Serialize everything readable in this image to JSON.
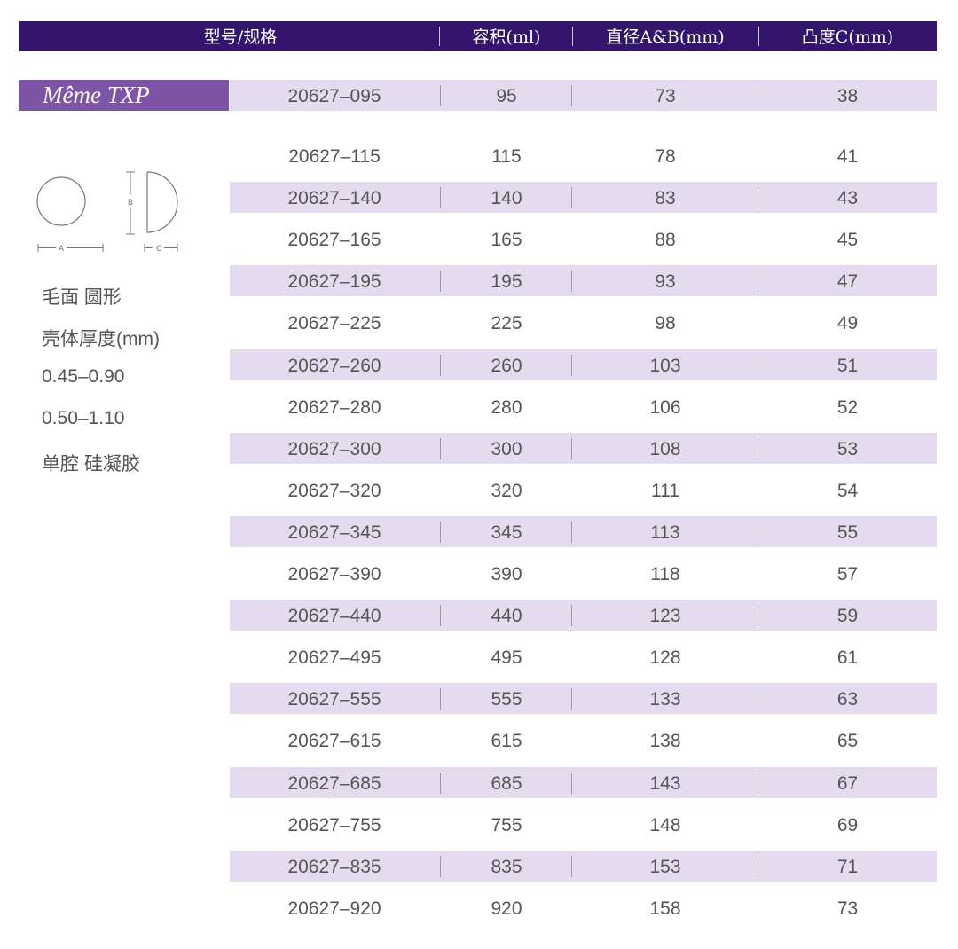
{
  "header": {
    "model_spec": "型号/规格",
    "volume": "容积(ml)",
    "diameter": "直径A&B(mm)",
    "projection": "凸度C(mm)"
  },
  "product": {
    "name": "Même TXP"
  },
  "diagram": {
    "label_a": "A",
    "label_b": "B",
    "label_c": "C"
  },
  "info": {
    "line1": "毛面 圆形",
    "line2": "壳体厚度(mm)",
    "line3": "0.45–0.90",
    "line4": "0.50–1.10",
    "line5": "单腔 硅凝胶"
  },
  "rows": [
    {
      "model": "20627–095",
      "volume": "95",
      "diameter": "73",
      "projection": "38"
    },
    {
      "model": "20627–115",
      "volume": "115",
      "diameter": "78",
      "projection": "41"
    },
    {
      "model": "20627–140",
      "volume": "140",
      "diameter": "83",
      "projection": "43"
    },
    {
      "model": "20627–165",
      "volume": "165",
      "diameter": "88",
      "projection": "45"
    },
    {
      "model": "20627–195",
      "volume": "195",
      "diameter": "93",
      "projection": "47"
    },
    {
      "model": "20627–225",
      "volume": "225",
      "diameter": "98",
      "projection": "49"
    },
    {
      "model": "20627–260",
      "volume": "260",
      "diameter": "103",
      "projection": "51"
    },
    {
      "model": "20627–280",
      "volume": "280",
      "diameter": "106",
      "projection": "52"
    },
    {
      "model": "20627–300",
      "volume": "300",
      "diameter": "108",
      "projection": "53"
    },
    {
      "model": "20627–320",
      "volume": "320",
      "diameter": "111",
      "projection": "54"
    },
    {
      "model": "20627–345",
      "volume": "345",
      "diameter": "113",
      "projection": "55"
    },
    {
      "model": "20627–390",
      "volume": "390",
      "diameter": "118",
      "projection": "57"
    },
    {
      "model": "20627–440",
      "volume": "440",
      "diameter": "123",
      "projection": "59"
    },
    {
      "model": "20627–495",
      "volume": "495",
      "diameter": "128",
      "projection": "61"
    },
    {
      "model": "20627–555",
      "volume": "555",
      "diameter": "133",
      "projection": "63"
    },
    {
      "model": "20627–615",
      "volume": "615",
      "diameter": "138",
      "projection": "65"
    },
    {
      "model": "20627–685",
      "volume": "685",
      "diameter": "143",
      "projection": "67"
    },
    {
      "model": "20627–755",
      "volume": "755",
      "diameter": "148",
      "projection": "69"
    },
    {
      "model": "20627–835",
      "volume": "835",
      "diameter": "153",
      "projection": "71"
    },
    {
      "model": "20627–920",
      "volume": "920",
      "diameter": "158",
      "projection": "73"
    }
  ],
  "colors": {
    "header_bg": "#33166b",
    "tag_bg": "#7e55a6",
    "stripe": "#e4dcee"
  }
}
